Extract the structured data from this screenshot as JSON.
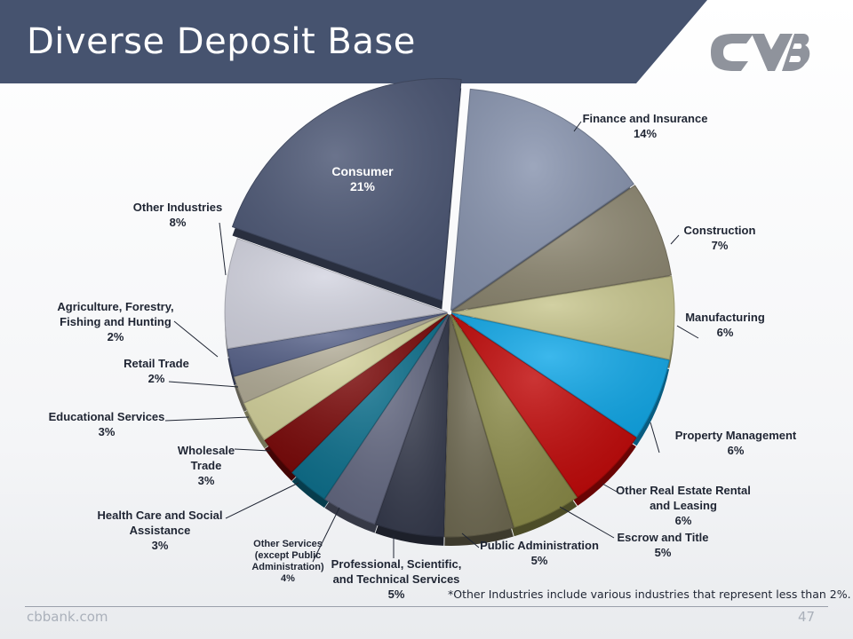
{
  "title": "Diverse Deposit Base",
  "footnote": "*Other Industries include various industries that represent less than 2%.",
  "footer": {
    "site": "cbbank.com",
    "page": "47"
  },
  "colors": {
    "header": "#46536f"
  },
  "chart_data": {
    "type": "pie",
    "style": "3d-exploded",
    "slices": [
      {
        "label": [
          "Finance and Insurance"
        ],
        "value": 14,
        "display": "14%",
        "color": "#8793ae"
      },
      {
        "label": [
          "Construction"
        ],
        "value": 7,
        "display": "7%",
        "color": "#8c8670"
      },
      {
        "label": [
          "Manufacturing"
        ],
        "value": 6,
        "display": "6%",
        "color": "#c8c68e"
      },
      {
        "label": [
          "Property Management"
        ],
        "value": 6,
        "display": "6%",
        "color": "#11a8e8"
      },
      {
        "label": [
          "Other Real Estate Rental",
          "and Leasing"
        ],
        "value": 6,
        "display": "6%",
        "color": "#c00808"
      },
      {
        "label": [
          "Escrow and Title"
        ],
        "value": 5,
        "display": "5%",
        "color": "#8a8a48"
      },
      {
        "label": [
          "Public Administration"
        ],
        "value": 5,
        "display": "5%",
        "color": "#6f6a52"
      },
      {
        "label": [
          "Professional, Scientific,",
          "and Technical Services"
        ],
        "value": 5,
        "display": "5%",
        "color": "#353a4c"
      },
      {
        "label": [
          "Other Services",
          "(except Public",
          "Administration)"
        ],
        "value": 4,
        "display": "4%",
        "color": "#626780"
      },
      {
        "label": [
          "Health Care and Social",
          "Assistance"
        ],
        "value": 3,
        "display": "3%",
        "color": "#0c6f8c"
      },
      {
        "label": [
          "Wholesale",
          "Trade"
        ],
        "value": 3,
        "display": "3%",
        "color": "#7a0909"
      },
      {
        "label": [
          "Educational Services"
        ],
        "value": 3,
        "display": "3%",
        "color": "#d4d29c"
      },
      {
        "label": [
          "Retail Trade"
        ],
        "value": 2,
        "display": "2%",
        "color": "#b3ad98"
      },
      {
        "label": [
          "Agriculture, Forestry,",
          "Fishing and Hunting"
        ],
        "value": 2,
        "display": "2%",
        "color": "#58638a"
      },
      {
        "label": [
          "Other Industries"
        ],
        "value": 8,
        "display": "8%",
        "color": "#d3d4e0"
      },
      {
        "label": [
          "Consumer"
        ],
        "value": 21,
        "display": "21%",
        "color": "#4a5573"
      }
    ]
  }
}
